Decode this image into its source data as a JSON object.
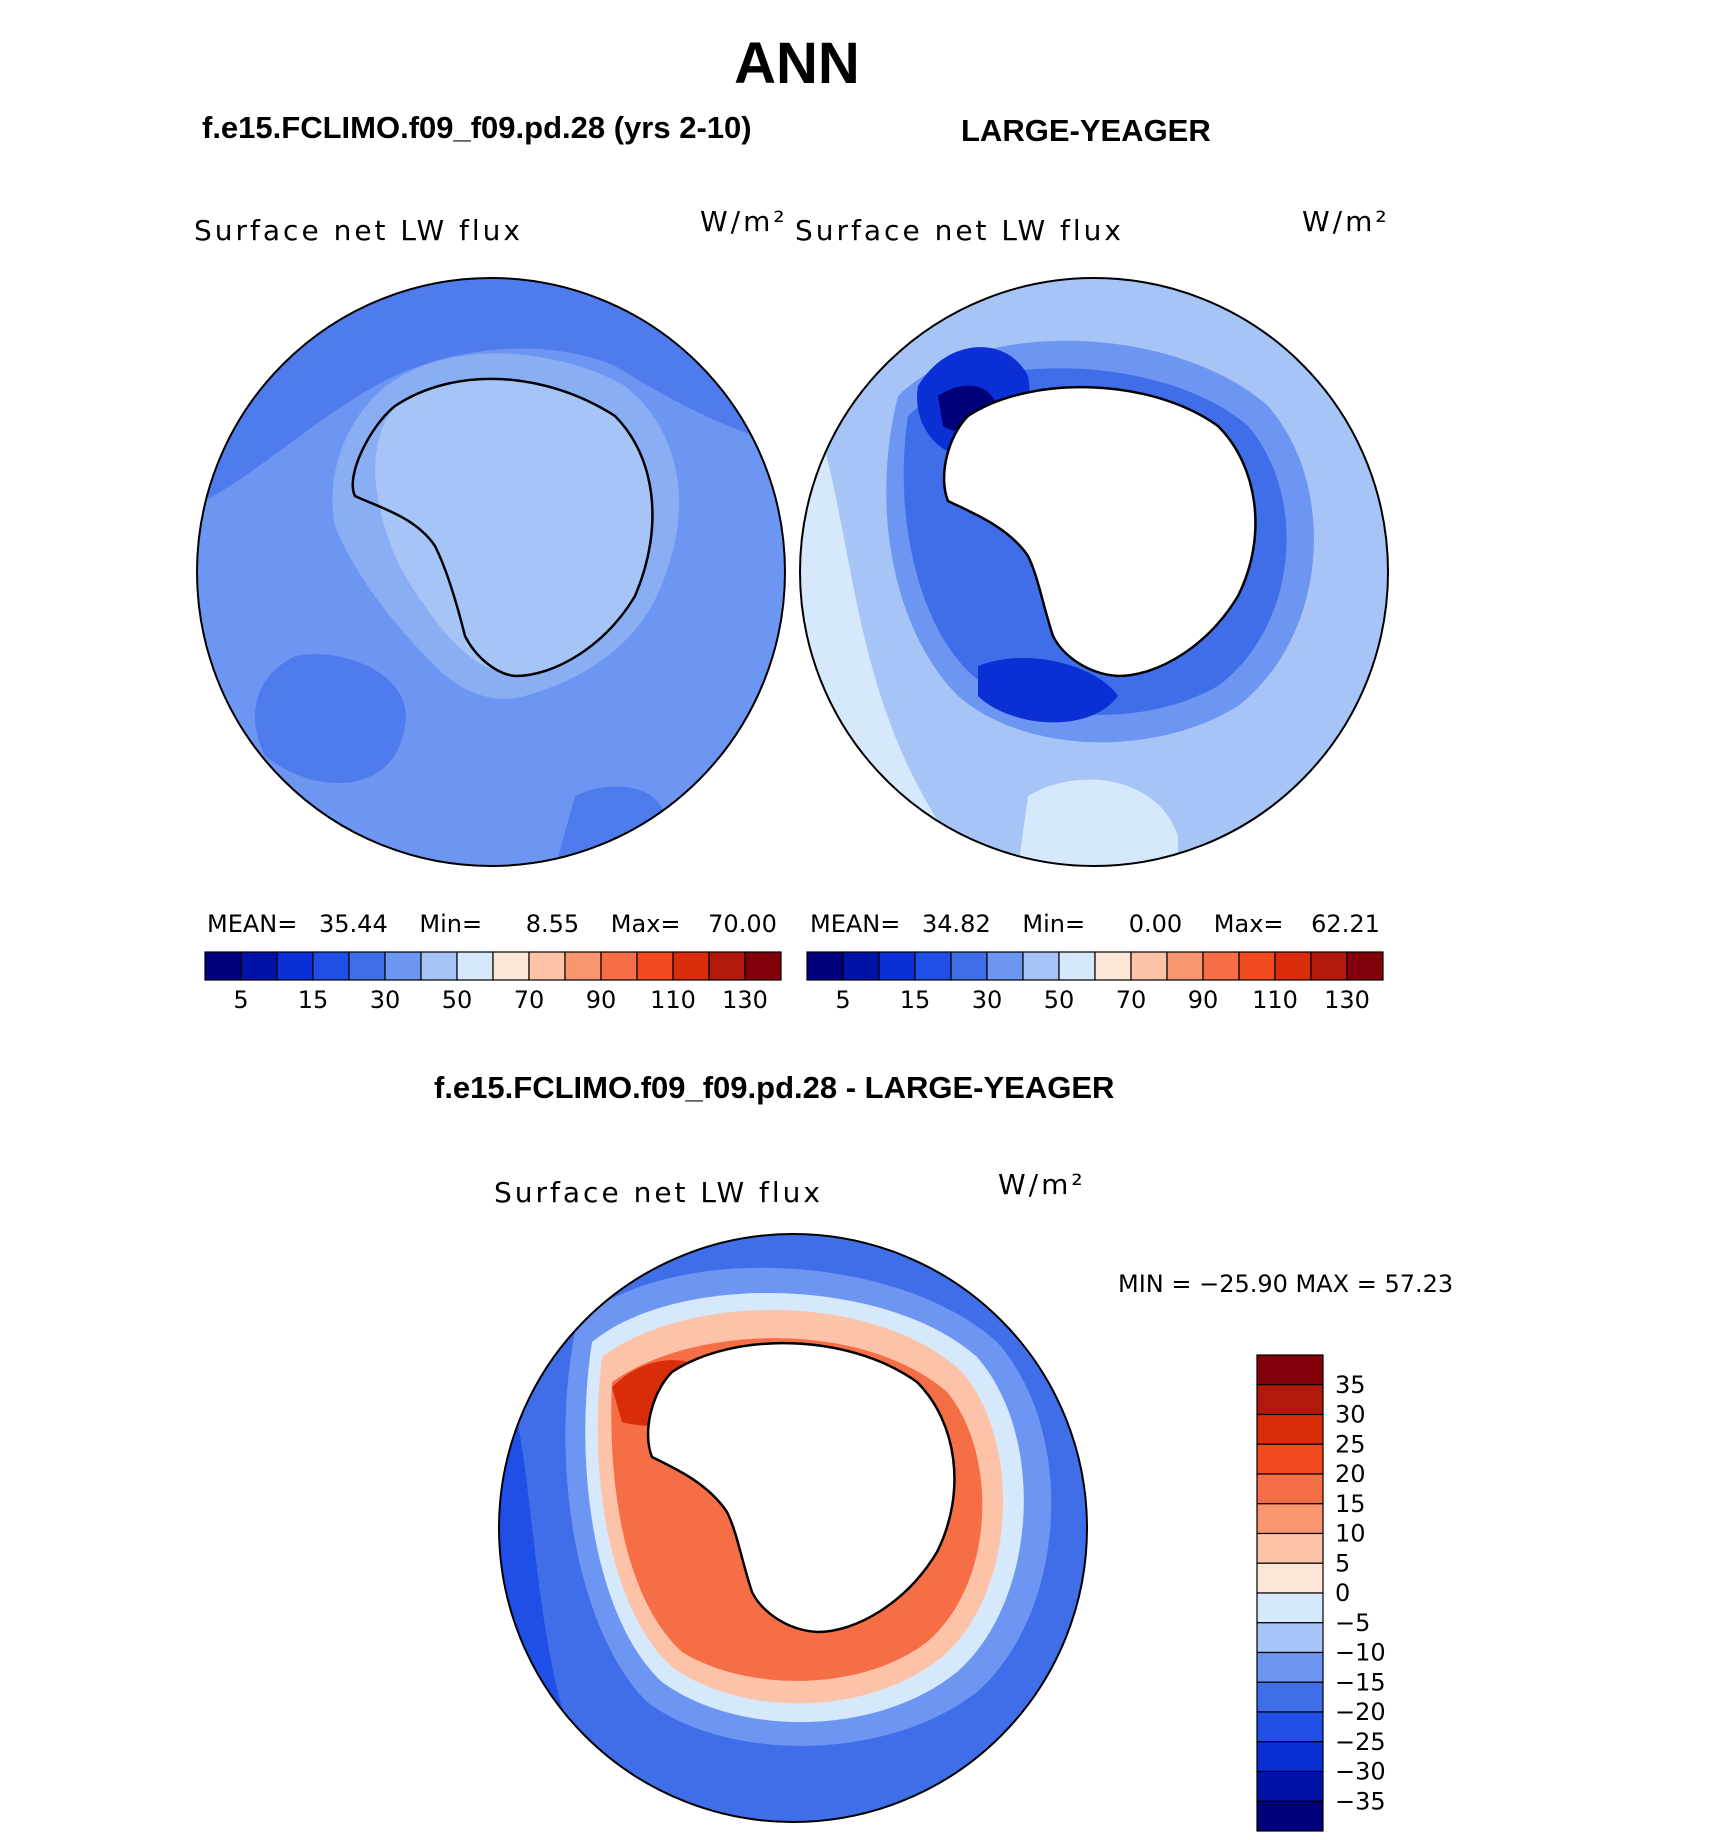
{
  "title": "ANN",
  "panels": {
    "left": {
      "case": "f.e15.FCLIMO.f09_f09.pd.28 (yrs 2-10)",
      "variable": "Surface net LW flux",
      "units": "W/m²",
      "stats": {
        "mean_label": "MEAN=",
        "mean": "35.44",
        "min_label": "Min=",
        "min": "8.55",
        "max_label": "Max=",
        "max": "70.00"
      }
    },
    "right": {
      "case": "LARGE-YEAGER",
      "variable": "Surface net LW flux",
      "units": "W/m²",
      "stats": {
        "mean_label": "MEAN=",
        "mean": "34.82",
        "min_label": "Min=",
        "min": "0.00",
        "max_label": "Max=",
        "max": "62.21"
      }
    },
    "diff": {
      "case": "f.e15.FCLIMO.f09_f09.pd.28 - LARGE-YEAGER",
      "variable": "Surface net LW flux",
      "units": "W/m²",
      "stats": {
        "text": "MIN = −25.90 MAX =   57.23"
      }
    }
  },
  "colorbars": {
    "absolute": {
      "colors": [
        "#00007a",
        "#0012a8",
        "#0a2fd4",
        "#1f4fe6",
        "#3f6ee8",
        "#6d96f2",
        "#a7c4f6",
        "#d6e8fb",
        "#fde6d6",
        "#fdc3a8",
        "#f99670",
        "#f56e45",
        "#f04a1e",
        "#d92d0a",
        "#b2180c",
        "#82000a"
      ],
      "tick_labels": [
        "5",
        "15",
        "30",
        "50",
        "70",
        "90",
        "110",
        "130"
      ]
    },
    "difference": {
      "colors": [
        "#00007a",
        "#0012a8",
        "#0a2fd4",
        "#1f4fe6",
        "#3f6ee8",
        "#6d96f2",
        "#a7c4f6",
        "#d6e8fb",
        "#fde6d6",
        "#fdc3a8",
        "#f99670",
        "#f56e45",
        "#f04a1e",
        "#d92d0a",
        "#b2180c",
        "#82000a"
      ],
      "tick_labels": [
        "35",
        "30",
        "25",
        "20",
        "15",
        "10",
        "5",
        "0",
        "−5",
        "−10",
        "−15",
        "−20",
        "−25",
        "−30",
        "−35"
      ]
    }
  },
  "chart_data": [
    {
      "type": "heatmap",
      "title": "Surface net LW flux",
      "subtitle": "f.e15.FCLIMO.f09_f09.pd.28 (yrs 2-10)",
      "units": "W/m²",
      "projection": "south-polar-stereographic",
      "levels": [
        5,
        10,
        15,
        20,
        30,
        40,
        50,
        60,
        70,
        80,
        90,
        100,
        110,
        120,
        130
      ],
      "stats": {
        "mean": 35.44,
        "min": 8.55,
        "max": 70.0
      }
    },
    {
      "type": "heatmap",
      "title": "Surface net LW flux",
      "subtitle": "LARGE-YEAGER",
      "units": "W/m²",
      "projection": "south-polar-stereographic",
      "levels": [
        5,
        10,
        15,
        20,
        30,
        40,
        50,
        60,
        70,
        80,
        90,
        100,
        110,
        120,
        130
      ],
      "stats": {
        "mean": 34.82,
        "min": 0.0,
        "max": 62.21
      }
    },
    {
      "type": "heatmap",
      "title": "Surface net LW flux",
      "subtitle": "f.e15.FCLIMO.f09_f09.pd.28 - LARGE-YEAGER",
      "units": "W/m²",
      "projection": "south-polar-stereographic",
      "levels": [
        -35,
        -30,
        -25,
        -20,
        -15,
        -10,
        -5,
        0,
        5,
        10,
        15,
        20,
        25,
        30,
        35
      ],
      "stats": {
        "min": -25.9,
        "max": 57.23
      }
    }
  ]
}
